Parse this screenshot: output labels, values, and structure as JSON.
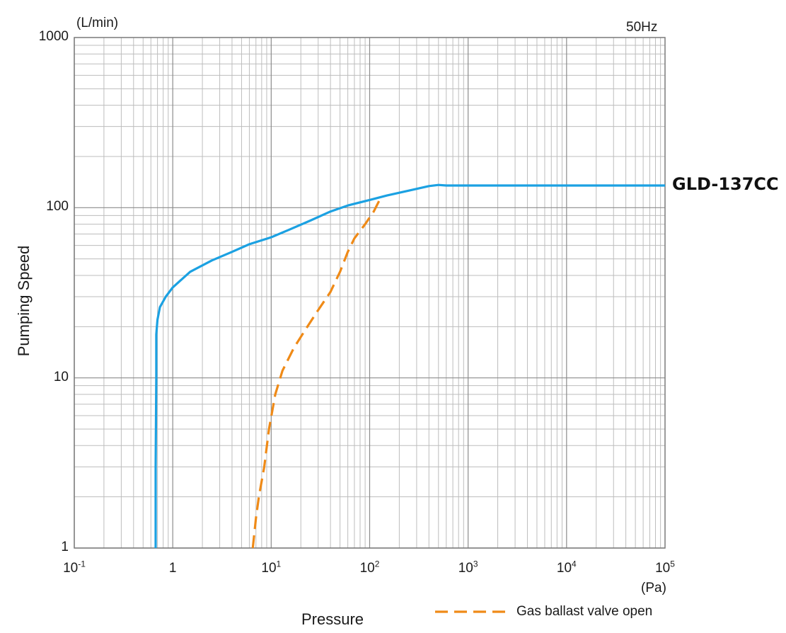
{
  "chart_data": {
    "type": "line",
    "y_unit": "(L/min)",
    "x_unit": "(Pa)",
    "frequency": "50Hz",
    "xlabel": "Pressure",
    "ylabel": "Pumping Speed",
    "x_scale": "log",
    "y_scale": "log",
    "xlim": [
      0.1,
      100000
    ],
    "ylim": [
      1,
      1000
    ],
    "grid": true,
    "x_ticks": [
      {
        "value": 0.1,
        "base": "10",
        "exp": "-1"
      },
      {
        "value": 1,
        "base": "1",
        "exp": ""
      },
      {
        "value": 10,
        "base": "10",
        "exp": "1"
      },
      {
        "value": 100,
        "base": "10",
        "exp": "2"
      },
      {
        "value": 1000,
        "base": "10",
        "exp": "3"
      },
      {
        "value": 10000,
        "base": "10",
        "exp": "4"
      },
      {
        "value": 100000,
        "base": "10",
        "exp": "5"
      }
    ],
    "y_ticks": [
      {
        "value": 1,
        "label": "1"
      },
      {
        "value": 10,
        "label": "10"
      },
      {
        "value": 100,
        "label": "100"
      },
      {
        "value": 1000,
        "label": "1000"
      }
    ],
    "series": [
      {
        "name": "GLD-137CC",
        "color": "#1ba1e2",
        "style": "solid",
        "points": [
          [
            0.67,
            1
          ],
          [
            0.67,
            3
          ],
          [
            0.68,
            10
          ],
          [
            0.68,
            18
          ],
          [
            0.7,
            22
          ],
          [
            0.74,
            26
          ],
          [
            0.85,
            30
          ],
          [
            1.0,
            34
          ],
          [
            1.5,
            42
          ],
          [
            2.5,
            49
          ],
          [
            4,
            55
          ],
          [
            6,
            61
          ],
          [
            10,
            67
          ],
          [
            15,
            74
          ],
          [
            25,
            84
          ],
          [
            40,
            95
          ],
          [
            60,
            103
          ],
          [
            100,
            111
          ],
          [
            150,
            118
          ],
          [
            250,
            126
          ],
          [
            400,
            134
          ],
          [
            500,
            136
          ],
          [
            600,
            135
          ],
          [
            1000,
            135
          ],
          [
            100000,
            135
          ]
        ]
      },
      {
        "name": "Gas ballast valve open",
        "color": "#ef8a17",
        "style": "dashed",
        "points": [
          [
            6.5,
            1
          ],
          [
            7,
            1.5
          ],
          [
            7.5,
            2
          ],
          [
            8.5,
            3
          ],
          [
            9.5,
            5
          ],
          [
            11,
            8
          ],
          [
            13,
            11
          ],
          [
            17,
            15
          ],
          [
            22,
            19
          ],
          [
            30,
            25
          ],
          [
            40,
            32
          ],
          [
            50,
            42
          ],
          [
            60,
            55
          ],
          [
            70,
            66
          ],
          [
            90,
            80
          ],
          [
            110,
            95
          ],
          [
            130,
            115
          ]
        ]
      }
    ]
  }
}
